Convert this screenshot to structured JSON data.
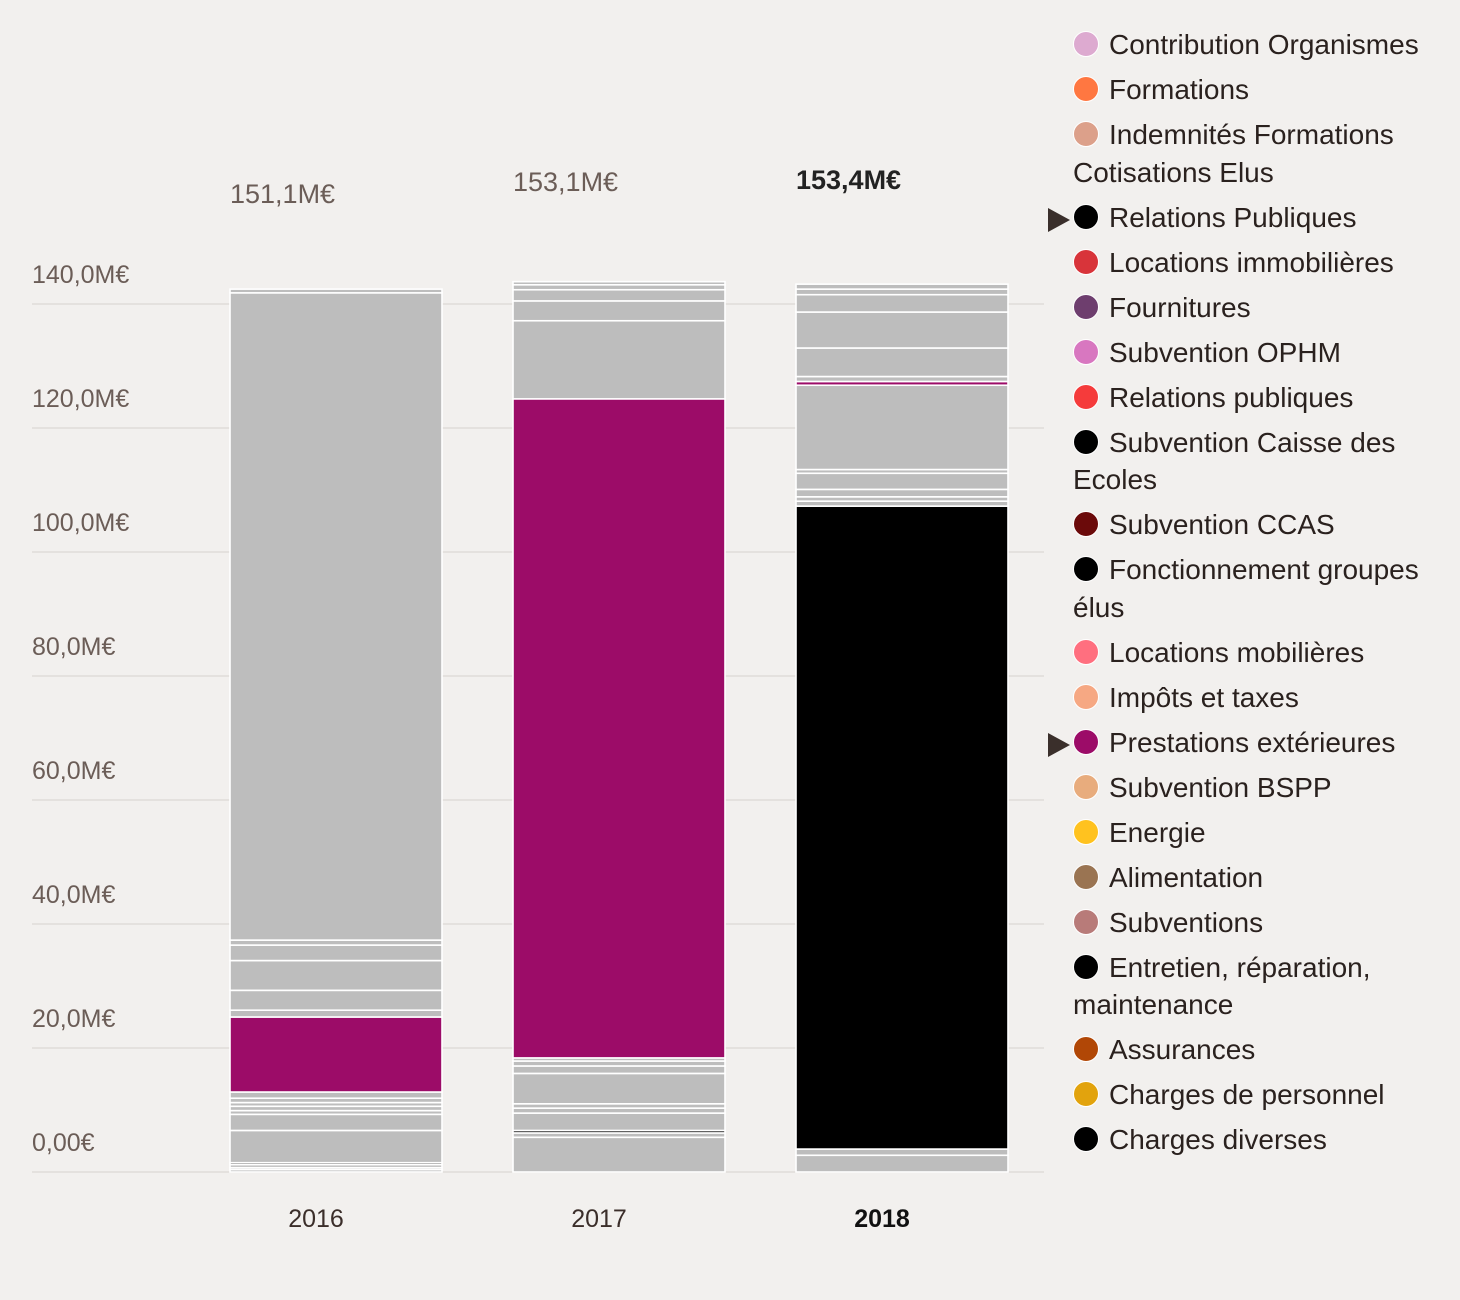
{
  "chart_data": {
    "type": "bar",
    "stacked": true,
    "categories": [
      "2016",
      "2017",
      "2018"
    ],
    "active_category": "2018",
    "totals": [
      "151,1M€",
      "153,1M€",
      "153,4M€"
    ],
    "total_values": [
      151.1,
      153.1,
      153.4
    ],
    "y_ticks": [
      "0,00€",
      "20,0M€",
      "40,0M€",
      "60,0M€",
      "80,0M€",
      "100,0M€",
      "120,0M€",
      "140,0M€"
    ],
    "y_tick_values": [
      0,
      20,
      40,
      60,
      80,
      100,
      120,
      140
    ],
    "ylim": [
      0,
      150
    ],
    "grid": true,
    "legend_position": "right",
    "colors": {
      "default_segment": "#bdbdbd",
      "separator": "#ffffff",
      "prestations_exterieures": "#9c0c68",
      "relations_publiques": "#000000"
    },
    "stacks": [
      {
        "category": "2016",
        "segments": [
          {
            "value": 0.4,
            "color": "#bdbdbd"
          },
          {
            "value": 0.3,
            "color": "#bdbdbd"
          },
          {
            "value": 0.5,
            "color": "#bdbdbd"
          },
          {
            "value": 0.3,
            "color": "#000000"
          },
          {
            "value": 5.2,
            "color": "#bdbdbd"
          },
          {
            "value": 2.6,
            "color": "#bdbdbd"
          },
          {
            "value": 0.6,
            "color": "#bdbdbd"
          },
          {
            "value": 0.7,
            "color": "#bdbdbd"
          },
          {
            "value": 0.6,
            "color": "#bdbdbd"
          },
          {
            "value": 0.7,
            "color": "#bdbdbd"
          },
          {
            "value": 1.0,
            "color": "#bdbdbd"
          },
          {
            "value": 12.1,
            "color": "#9c0c68",
            "series": "Prestations extérieures"
          },
          {
            "value": 1.1,
            "color": "#bdbdbd"
          },
          {
            "value": 3.2,
            "color": "#bdbdbd"
          },
          {
            "value": 4.8,
            "color": "#bdbdbd"
          },
          {
            "value": 2.5,
            "color": "#bdbdbd"
          },
          {
            "value": 0.8,
            "color": "#bdbdbd"
          },
          {
            "value": 104.4,
            "color": "#bdbdbd"
          },
          {
            "value": 0.6,
            "color": "#bdbdbd"
          }
        ]
      },
      {
        "category": "2017",
        "segments": [
          {
            "value": 5.6,
            "color": "#bdbdbd"
          },
          {
            "value": 0.7,
            "color": "#bdbdbd"
          },
          {
            "value": 0.4,
            "color": "#000000"
          },
          {
            "value": 2.8,
            "color": "#bdbdbd"
          },
          {
            "value": 0.8,
            "color": "#bdbdbd"
          },
          {
            "value": 0.7,
            "color": "#bdbdbd"
          },
          {
            "value": 4.9,
            "color": "#bdbdbd"
          },
          {
            "value": 1.2,
            "color": "#bdbdbd"
          },
          {
            "value": 0.8,
            "color": "#bdbdbd"
          },
          {
            "value": 0.5,
            "color": "#bdbdbd"
          },
          {
            "value": 106.3,
            "color": "#9c0c68",
            "series": "Prestations extérieures"
          },
          {
            "value": 12.6,
            "color": "#bdbdbd"
          },
          {
            "value": 3.2,
            "color": "#bdbdbd"
          },
          {
            "value": 1.8,
            "color": "#bdbdbd"
          },
          {
            "value": 0.8,
            "color": "#bdbdbd"
          },
          {
            "value": 0.5,
            "color": "#bdbdbd"
          }
        ]
      },
      {
        "category": "2018",
        "segments": [
          {
            "value": 2.7,
            "color": "#bdbdbd"
          },
          {
            "value": 1.0,
            "color": "#bdbdbd"
          },
          {
            "value": 103.7,
            "color": "#000000",
            "series": "Relations Publiques"
          },
          {
            "value": 0.8,
            "color": "#bdbdbd"
          },
          {
            "value": 0.7,
            "color": "#bdbdbd"
          },
          {
            "value": 1.2,
            "color": "#bdbdbd"
          },
          {
            "value": 2.6,
            "color": "#bdbdbd"
          },
          {
            "value": 0.6,
            "color": "#bdbdbd"
          },
          {
            "value": 13.6,
            "color": "#bdbdbd"
          },
          {
            "value": 0.6,
            "color": "#9c0c68",
            "series": "Prestations extérieures"
          },
          {
            "value": 0.8,
            "color": "#bdbdbd"
          },
          {
            "value": 4.6,
            "color": "#bdbdbd"
          },
          {
            "value": 5.8,
            "color": "#bdbdbd"
          },
          {
            "value": 2.8,
            "color": "#bdbdbd"
          },
          {
            "value": 0.9,
            "color": "#bdbdbd"
          },
          {
            "value": 0.8,
            "color": "#bdbdbd"
          }
        ]
      }
    ]
  },
  "legend": {
    "items": [
      {
        "label": "Contribution Organismes",
        "color": "#ddaad0",
        "selected": false
      },
      {
        "label": "Formations",
        "color": "#ff7741",
        "selected": false
      },
      {
        "label": "Indemnités Formations Cotisations Elus",
        "color": "#dca08a",
        "selected": false
      },
      {
        "label": "Relations Publiques",
        "color": "#000000",
        "selected": true
      },
      {
        "label": "Locations immobilières",
        "color": "#d8343a",
        "selected": false
      },
      {
        "label": "Fournitures",
        "color": "#6e3e6e",
        "selected": false
      },
      {
        "label": "Subvention OPHM",
        "color": "#d877c0",
        "selected": false
      },
      {
        "label": "Relations publiques",
        "color": "#f53b3b",
        "selected": false
      },
      {
        "label": "Subvention Caisse des Ecoles",
        "color": "#000000",
        "selected": false
      },
      {
        "label": "Subvention CCAS",
        "color": "#6b0a0a",
        "selected": false
      },
      {
        "label": "Fonctionnement groupes élus",
        "color": "#000000",
        "selected": false
      },
      {
        "label": "Locations mobilières",
        "color": "#ff6f7f",
        "selected": false
      },
      {
        "label": "Impôts et taxes",
        "color": "#f6a883",
        "selected": false
      },
      {
        "label": "Prestations extérieures",
        "color": "#9c0c68",
        "selected": true
      },
      {
        "label": "Subvention BSPP",
        "color": "#e8ac7d",
        "selected": false
      },
      {
        "label": "Energie",
        "color": "#ffc21f",
        "selected": false
      },
      {
        "label": "Alimentation",
        "color": "#9a7452",
        "selected": false
      },
      {
        "label": "Subventions",
        "color": "#b87b79",
        "selected": false
      },
      {
        "label": "Entretien, réparation, maintenance",
        "color": "#000000",
        "selected": false
      },
      {
        "label": "Assurances",
        "color": "#b14706",
        "selected": false
      },
      {
        "label": "Charges de personnel",
        "color": "#e2a30d",
        "selected": false
      },
      {
        "label": "Charges diverses",
        "color": "#000000",
        "selected": false
      }
    ]
  }
}
